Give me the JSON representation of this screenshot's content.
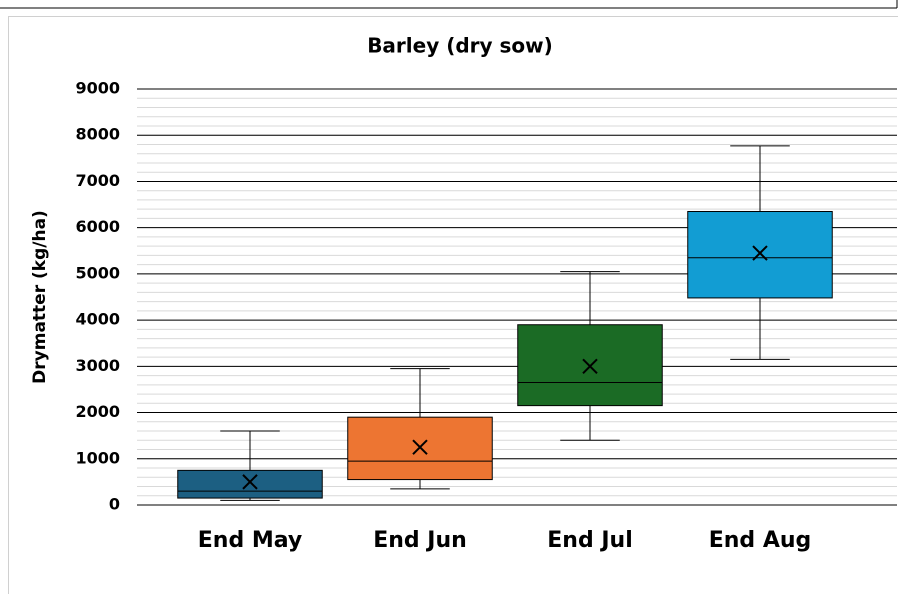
{
  "chart_data": {
    "type": "box",
    "title": "Barley (dry sow)",
    "y_label": "Drymatter (kg/ha)",
    "categories": [
      "End May",
      "End Jun",
      "End Jul",
      "End Aug"
    ],
    "boxes": [
      {
        "min": 100,
        "q1": 150,
        "median": 300,
        "q3": 750,
        "max": 1600,
        "mean": 500,
        "color": "#1c5f82"
      },
      {
        "min": 350,
        "q1": 550,
        "median": 950,
        "q3": 1900,
        "max": 2950,
        "mean": 1250,
        "color": "#ed7532"
      },
      {
        "min": 1400,
        "q1": 2150,
        "median": 2650,
        "q3": 3900,
        "max": 5050,
        "mean": 3000,
        "color": "#1b6b25"
      },
      {
        "min": 3150,
        "q1": 4480,
        "median": 5350,
        "q3": 6350,
        "max": 7770,
        "mean": 5450,
        "color": "#129dd3"
      }
    ],
    "ylim": [
      0,
      9000
    ],
    "yticks": [
      0,
      1000,
      2000,
      3000,
      4000,
      5000,
      6000,
      7000,
      8000,
      9000
    ],
    "grid": true,
    "minor_grid_step": 200
  }
}
